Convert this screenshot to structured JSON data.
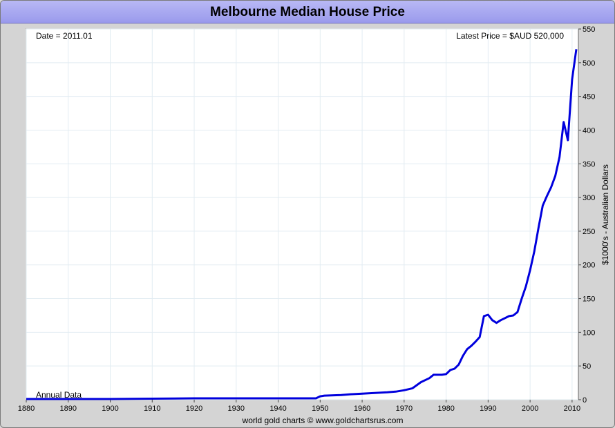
{
  "title": "Melbourne Median House Price",
  "footer": "world gold charts © www.goldchartsrus.com",
  "annotations": {
    "date": "Date = 2011.01",
    "latest": "Latest Price = $AUD 520,000",
    "frequency": "Annual Data"
  },
  "colors": {
    "line": "#0000dd",
    "grid": "#e2ecf2",
    "title_bg": "#a8a8f0"
  },
  "chart_data": {
    "type": "line",
    "title": "Melbourne Median House Price",
    "xlabel": "",
    "ylabel": "$1000's - Australian Dollars",
    "xlim": [
      1880,
      2011.5
    ],
    "ylim": [
      0,
      550
    ],
    "x_ticks": [
      1880,
      1890,
      1900,
      1910,
      1920,
      1930,
      1940,
      1950,
      1960,
      1970,
      1980,
      1990,
      2000,
      2010
    ],
    "y_ticks": [
      0,
      50,
      100,
      150,
      200,
      250,
      300,
      350,
      400,
      450,
      500,
      550
    ],
    "grid": true,
    "series": [
      {
        "x": [
          1880,
          1890,
          1900,
          1910,
          1920,
          1925,
          1930,
          1935,
          1940,
          1945,
          1949,
          1950,
          1951,
          1955,
          1957,
          1960,
          1963,
          1966,
          1968,
          1970,
          1972,
          1974,
          1976,
          1977,
          1979,
          1980,
          1981,
          1982,
          1983,
          1984,
          1985,
          1986,
          1987,
          1988,
          1989,
          1990,
          1991,
          1992,
          1993,
          1994,
          1995,
          1996,
          1997,
          1998,
          1999,
          2000,
          2001,
          2002,
          2003,
          2004,
          2005,
          2006,
          2007,
          2008,
          2009,
          2010,
          2011
        ],
        "y": [
          1,
          1,
          1,
          1.5,
          2,
          2,
          2,
          2,
          2,
          2,
          2,
          5,
          6,
          7,
          8,
          9,
          10,
          11,
          12,
          14,
          17,
          26,
          32,
          37,
          37,
          38,
          44,
          46,
          52,
          65,
          75,
          80,
          86,
          93,
          124,
          126,
          118,
          114,
          118,
          121,
          124,
          125,
          130,
          150,
          168,
          192,
          220,
          255,
          288,
          302,
          315,
          332,
          360,
          412,
          385,
          475,
          520
        ]
      }
    ]
  }
}
